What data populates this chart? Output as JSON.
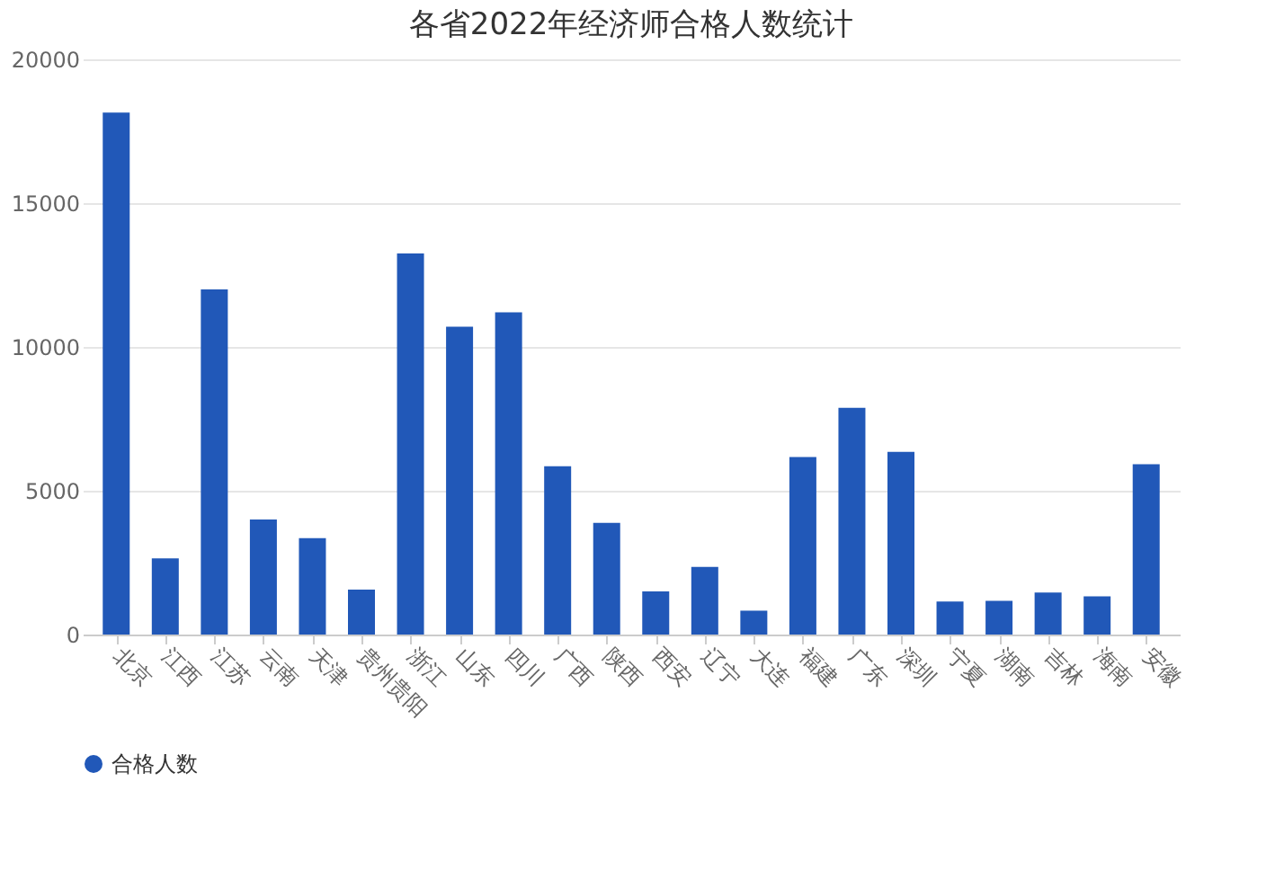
{
  "chart_data": {
    "type": "bar",
    "title": "各省2022年经济师合格人数统计",
    "categories": [
      "北京",
      "江西",
      "江苏",
      "云南",
      "天津",
      "贵州贵阳",
      "浙江",
      "山东",
      "四川",
      "广西",
      "陕西",
      "西安",
      "辽宁",
      "大连",
      "福建",
      "广东",
      "深圳",
      "宁夏",
      "湖南",
      "吉林",
      "海南",
      "安徽"
    ],
    "series": [
      {
        "name": "合格人数",
        "color": "#2158b8",
        "values": [
          18150,
          2650,
          12000,
          4000,
          3350,
          1560,
          13250,
          10700,
          11200,
          5850,
          3880,
          1500,
          2350,
          830,
          6170,
          7880,
          6350,
          1150,
          1170,
          1460,
          1330,
          5920
        ]
      }
    ],
    "ylim": [
      0,
      20000
    ],
    "yticks": [
      0,
      5000,
      10000,
      15000,
      20000
    ],
    "grid": "y",
    "legend": "bottom"
  }
}
